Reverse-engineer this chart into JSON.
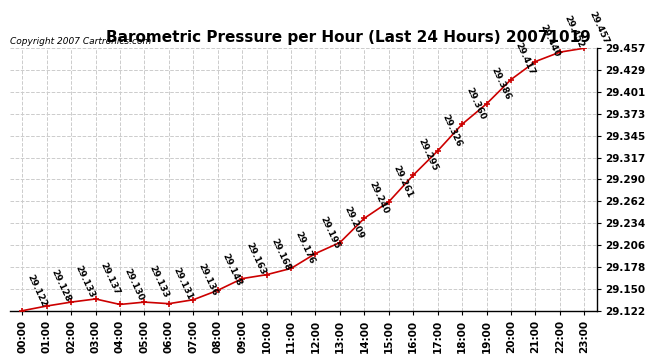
{
  "title": "Barometric Pressure per Hour (Last 24 Hours) 20071019",
  "copyright": "Copyright 2007 Cartronics.com",
  "hours": [
    "00:00",
    "01:00",
    "02:00",
    "03:00",
    "04:00",
    "05:00",
    "06:00",
    "07:00",
    "08:00",
    "09:00",
    "10:00",
    "11:00",
    "12:00",
    "13:00",
    "14:00",
    "15:00",
    "16:00",
    "17:00",
    "18:00",
    "19:00",
    "20:00",
    "21:00",
    "22:00",
    "23:00"
  ],
  "values": [
    29.122,
    29.128,
    29.133,
    29.137,
    29.13,
    29.133,
    29.131,
    29.136,
    29.148,
    29.163,
    29.168,
    29.176,
    29.195,
    29.209,
    29.24,
    29.261,
    29.295,
    29.326,
    29.36,
    29.386,
    29.417,
    29.44,
    29.452,
    29.457
  ],
  "y_ticks": [
    29.122,
    29.15,
    29.178,
    29.206,
    29.234,
    29.262,
    29.29,
    29.317,
    29.345,
    29.373,
    29.401,
    29.429,
    29.457
  ],
  "line_color": "#cc0000",
  "marker_color": "#cc0000",
  "bg_color": "#ffffff",
  "grid_color": "#cccccc",
  "title_fontsize": 11,
  "label_fontsize": 6.5,
  "tick_fontsize": 7.5,
  "copyright_fontsize": 6.5
}
